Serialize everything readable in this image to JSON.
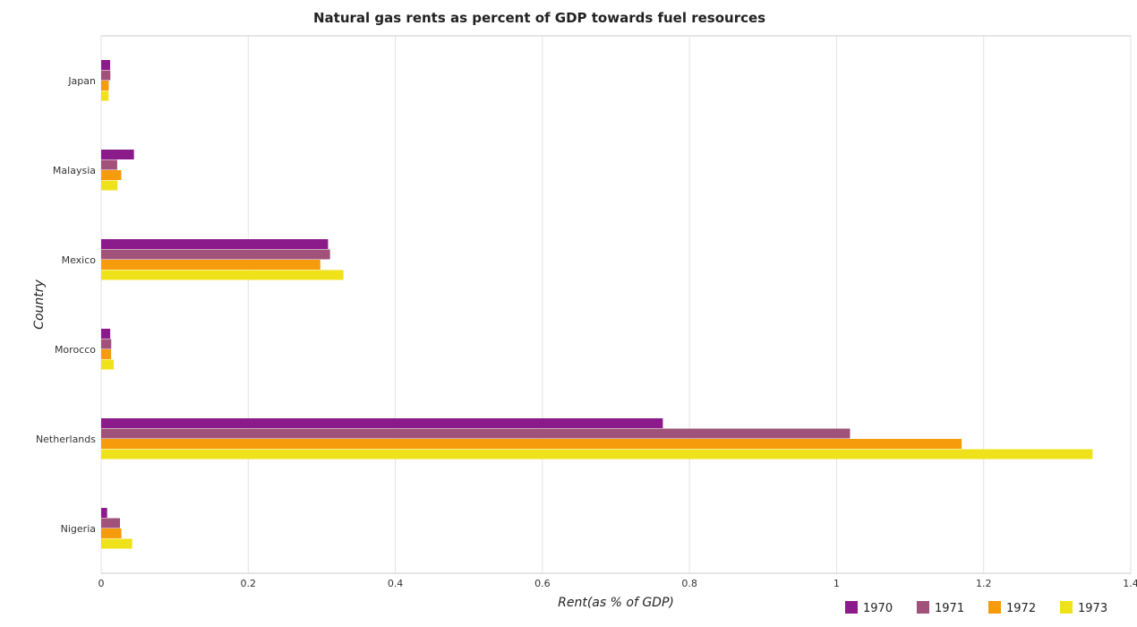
{
  "chart_data": {
    "type": "bar",
    "orientation": "horizontal",
    "title": "Natural gas rents as percent of GDP towards fuel resources",
    "xlabel": "Rent(as % of GDP)",
    "ylabel": "Country",
    "xlim": [
      0,
      1.4
    ],
    "xticks": [
      "0",
      "0.2",
      "0.4",
      "0.6",
      "0.8",
      "1",
      "1.2",
      "1.4"
    ],
    "grid": true,
    "legend_position": "bottom-right",
    "categories": [
      "Japan",
      "Malaysia",
      "Mexico",
      "Morocco",
      "Netherlands",
      "Nigeria"
    ],
    "series": [
      {
        "name": "1970",
        "color": "#8b1a8b",
        "values": [
          0.0122,
          0.0446,
          0.3085,
          0.0123,
          0.7638,
          0.0081
        ]
      },
      {
        "name": "1971",
        "color": "#a0527a",
        "values": [
          0.0125,
          0.0218,
          0.3112,
          0.0137,
          1.0183,
          0.0256
        ]
      },
      {
        "name": "1972",
        "color": "#f59b0c",
        "values": [
          0.0103,
          0.0273,
          0.298,
          0.0135,
          1.1701,
          0.0275
        ]
      },
      {
        "name": "1973",
        "color": "#f0e21a",
        "values": [
          0.01,
          0.0222,
          0.3295,
          0.0171,
          1.3481,
          0.0422
        ]
      }
    ]
  }
}
